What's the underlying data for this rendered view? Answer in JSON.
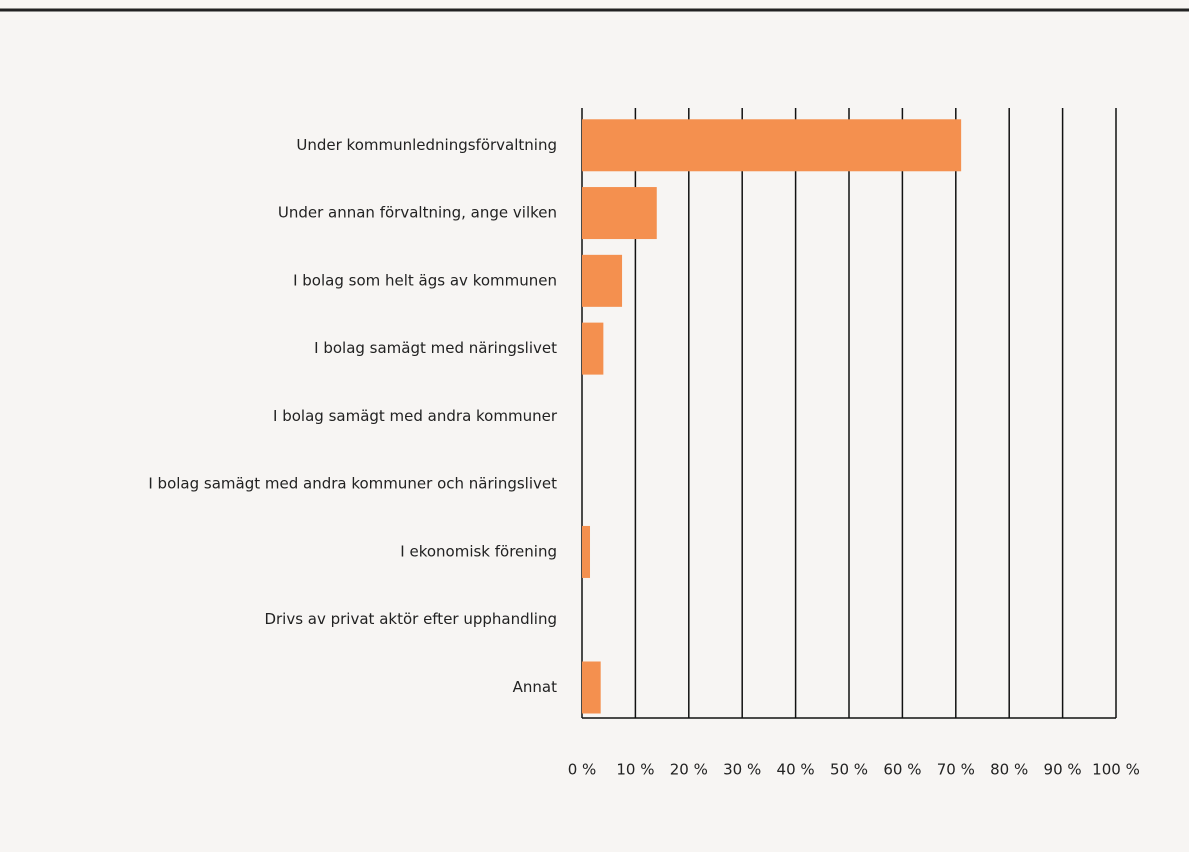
{
  "chart_data": {
    "type": "bar",
    "orientation": "horizontal",
    "categories": [
      "Under kommunledningsförvaltning",
      "Under annan förvaltning, ange vilken",
      "I bolag som helt ägs av kommunen",
      "I bolag samägt med näringslivet",
      "I bolag samägt med andra kommuner",
      "I bolag samägt med andra kommuner och näringslivet",
      "I ekonomisk förening",
      "Drivs av privat aktör efter upphandling",
      "Annat"
    ],
    "values": [
      71,
      14,
      7.5,
      4,
      0,
      0,
      1.5,
      0,
      3.5
    ],
    "color": "#f4904f",
    "xlim": [
      0,
      100
    ],
    "xticks": [
      {
        "value": 0,
        "label": "0 %"
      },
      {
        "value": 10,
        "label": "10 %"
      },
      {
        "value": 20,
        "label": "20 %"
      },
      {
        "value": 30,
        "label": "30 %"
      },
      {
        "value": 40,
        "label": "40 %"
      },
      {
        "value": 50,
        "label": "50 %"
      },
      {
        "value": 60,
        "label": "60 %"
      },
      {
        "value": 70,
        "label": "70 %"
      },
      {
        "value": 80,
        "label": "80 %"
      },
      {
        "value": 90,
        "label": "90 %"
      },
      {
        "value": 100,
        "label": "100 %"
      }
    ],
    "grid": true
  }
}
